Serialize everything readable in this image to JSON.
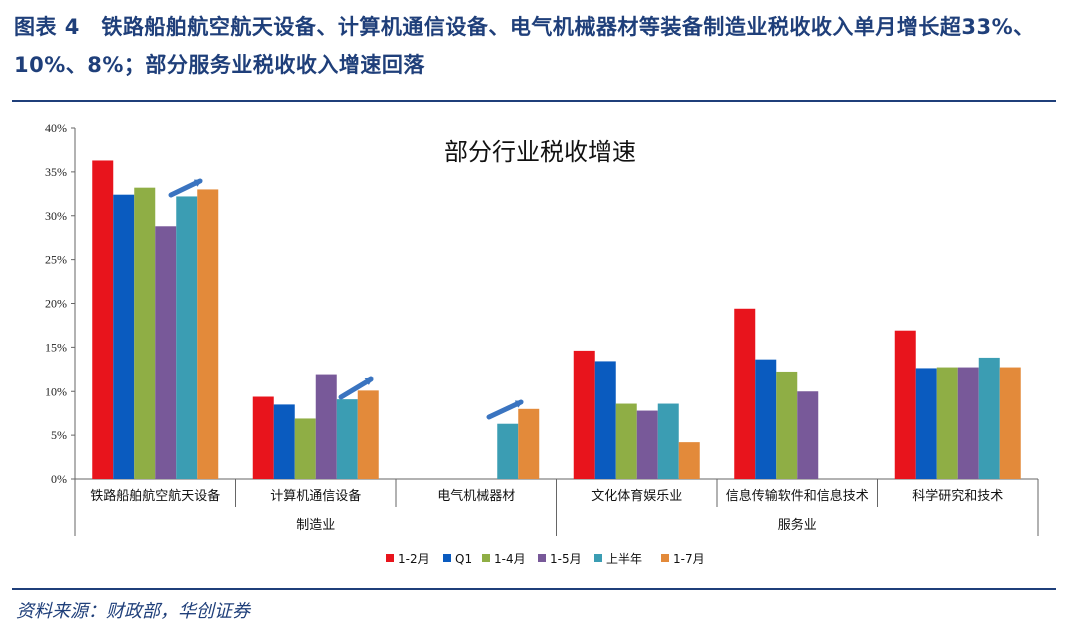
{
  "figure": {
    "title": "图表 4　铁路船舶航空航天设备、计算机通信设备、电气机械器材等装备制造业税收收入单月增长超33%、10%、8%；部分服务业税收收入增速回落",
    "source": "资料来源：财政部，华创证券"
  },
  "chart_data": {
    "type": "bar",
    "title": "部分行业税收增速",
    "categories": [
      "铁路船舶航空航天设备",
      "计算机通信设备",
      "电气机械器材",
      "文化体育娱乐业",
      "信息传输软件和信息技术",
      "科学研究和技术"
    ],
    "groups": [
      {
        "label": "制造业",
        "categories": [
          0,
          1,
          2
        ]
      },
      {
        "label": "服务业",
        "categories": [
          3,
          4,
          5
        ]
      }
    ],
    "series": [
      {
        "name": "1-2月",
        "color": "#e8141c",
        "values": [
          36.3,
          9.4,
          null,
          14.6,
          19.4,
          16.9
        ]
      },
      {
        "name": "Q1",
        "color": "#0a5bbf",
        "values": [
          32.4,
          8.5,
          null,
          13.4,
          13.6,
          12.6
        ]
      },
      {
        "name": "1-4月",
        "color": "#8fae45",
        "values": [
          33.2,
          6.9,
          null,
          8.6,
          12.2,
          12.7
        ]
      },
      {
        "name": "1-5月",
        "color": "#785999",
        "values": [
          28.8,
          11.9,
          null,
          7.8,
          10.0,
          12.7
        ]
      },
      {
        "name": "上半年",
        "color": "#3b9db3",
        "values": [
          32.2,
          9.1,
          6.3,
          8.6,
          null,
          13.8
        ]
      },
      {
        "name": "1-7月",
        "color": "#e38a3a",
        "values": [
          33.0,
          10.1,
          8.0,
          4.2,
          null,
          12.7
        ]
      }
    ],
    "y_ticks": [
      "0%",
      "5%",
      "10%",
      "15%",
      "20%",
      "25%",
      "30%",
      "35%",
      "40%"
    ],
    "ylim": [
      0,
      40
    ],
    "legend_position": "bottom",
    "annotations": [
      "trend-arrow",
      "trend-arrow",
      "trend-arrow"
    ]
  }
}
